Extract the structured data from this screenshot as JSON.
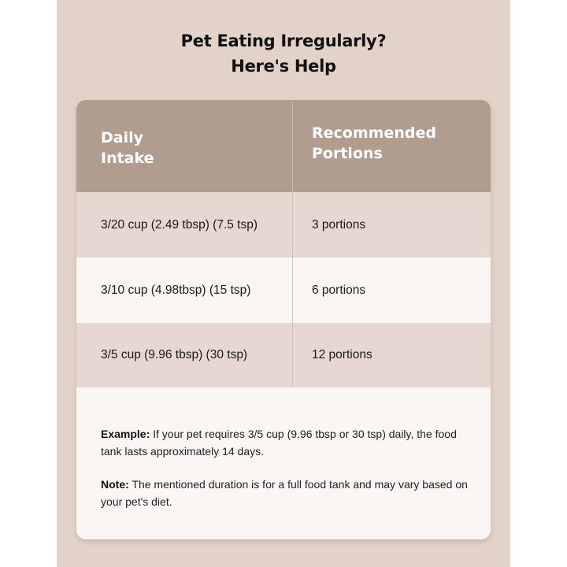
{
  "title": {
    "line1": "Pet Eating Irregularly?",
    "line2": "Here's Help"
  },
  "table": {
    "headers": [
      "Daily\nIntake",
      "Recommended\nPortions"
    ],
    "rows": [
      {
        "daily_intake": "3/20 cup (2.49 tbsp) (7.5 tsp)",
        "portions": "3 portions"
      },
      {
        "daily_intake": "3/10 cup (4.98tbsp) (15 tsp)",
        "portions": "6 portions"
      },
      {
        "daily_intake": "3/5 cup (9.96 tbsp) (30 tsp)",
        "portions": "12 portions"
      }
    ]
  },
  "notes": {
    "example_label": "Example:",
    "example_text": " If your pet requires 3/5 cup (9.96 tbsp or 30 tsp) daily, the food tank lasts approximately 14 days.",
    "note_label": "Note:",
    "note_text": " The mentioned duration is for a full food tank and may vary based on your pet's diet."
  },
  "colors": {
    "page_background": "#e2d2c8",
    "header_background": "#b19d90",
    "row_alt_background": "#e6d8d0",
    "row_light_background": "#f9f6f3"
  }
}
